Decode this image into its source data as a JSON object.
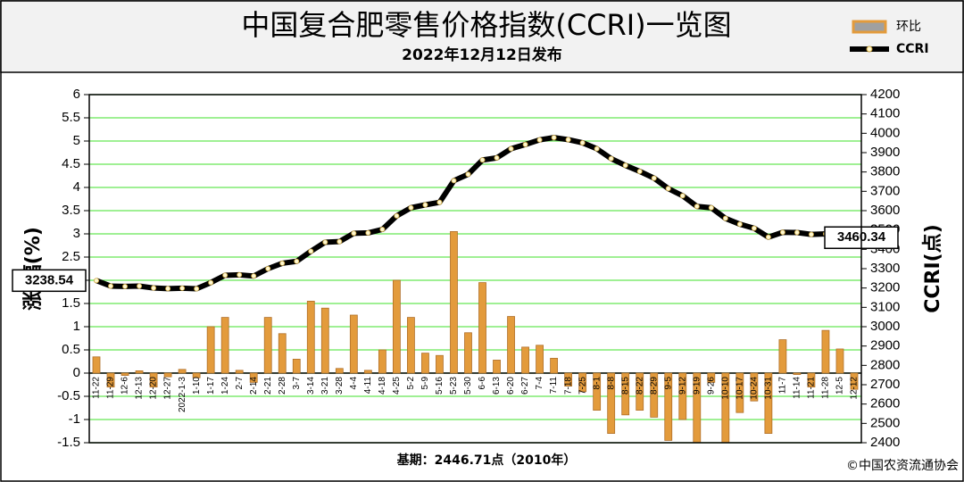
{
  "chart_data": {
    "type": "bar_line",
    "title": "中国复合肥零售价格指数(CCRI)一览图",
    "subtitle": "2022年12月12日发布",
    "y_label": "涨 幅(%)",
    "y2_label": "CCRI(点)",
    "footnote": "基期：2446.71点（2010年）",
    "credit": "©中国农资流通协会",
    "categories": [
      "11-22",
      "11-29",
      "12-6",
      "12-13",
      "12-20",
      "12-27",
      "2022-1-3",
      "1-10",
      "1-17",
      "1-24",
      "2-7",
      "2-14",
      "2-21",
      "2-28",
      "3-7",
      "3-14",
      "3-21",
      "3-28",
      "4-4",
      "4-11",
      "4-18",
      "4-25",
      "5-2",
      "5-9",
      "5-16",
      "5-23",
      "5-30",
      "6-6",
      "6-13",
      "6-20",
      "6-27",
      "7-4",
      "7-11",
      "7-18",
      "7-25",
      "8-1",
      "8-8",
      "8-15",
      "8-22",
      "8-29",
      "9-5",
      "9-12",
      "9-19",
      "9-26",
      "10-10",
      "10-17",
      "10-24",
      "10-31",
      "11-7",
      "11-14",
      "11-21",
      "11-28",
      "12-5",
      "12-12"
    ],
    "series": [
      {
        "name": "环比",
        "type": "bar",
        "color": "#e39b3c",
        "values": [
          0.35,
          -0.3,
          -0.05,
          0.05,
          -0.3,
          -0.08,
          0.08,
          -0.1,
          1.0,
          1.2,
          0.06,
          -0.2,
          1.2,
          0.85,
          0.3,
          1.55,
          1.4,
          0.1,
          1.25,
          0.06,
          0.5,
          2.0,
          1.2,
          0.43,
          0.38,
          3.05,
          0.87,
          1.95,
          0.28,
          1.22,
          0.56,
          0.6,
          0.32,
          -0.28,
          -0.4,
          -0.8,
          -1.3,
          -0.9,
          -0.8,
          -0.95,
          -1.45,
          -1.0,
          -1.5,
          -0.2,
          -1.5,
          -0.85,
          -0.6,
          -1.3,
          0.72,
          -0.03,
          -0.3,
          0.92,
          0.52,
          -0.35
        ]
      },
      {
        "name": "CCRI",
        "type": "line",
        "axis": "y2",
        "color": "#000000",
        "values": [
          3238.54,
          3210,
          3208,
          3210,
          3200,
          3197,
          3199,
          3196,
          3228,
          3266,
          3268,
          3262,
          3300,
          3328,
          3338,
          3390,
          3437,
          3440,
          3483,
          3485,
          3503,
          3573,
          3615,
          3630,
          3643,
          3755,
          3788,
          3862,
          3873,
          3920,
          3942,
          3966,
          3978,
          3967,
          3951,
          3920,
          3869,
          3834,
          3803,
          3768,
          3714,
          3677,
          3622,
          3615,
          3560,
          3530,
          3509,
          3463,
          3488,
          3487,
          3477,
          3480,
          3472,
          3460.34
        ]
      }
    ],
    "ylim": [
      -1.5,
      6
    ],
    "yticks": [
      -1.5,
      -1,
      -0.5,
      0,
      0.5,
      1,
      1.5,
      2,
      2.5,
      3,
      3.5,
      4,
      4.5,
      5,
      5.5,
      6
    ],
    "y2lim": [
      2400,
      4200
    ],
    "y2ticks": [
      2400,
      2500,
      2600,
      2700,
      2800,
      2900,
      3000,
      3100,
      3200,
      3300,
      3400,
      3500,
      3600,
      3700,
      3800,
      3900,
      4000,
      4100,
      4200
    ],
    "grid": true,
    "grid_color": "#66e855"
  }
}
